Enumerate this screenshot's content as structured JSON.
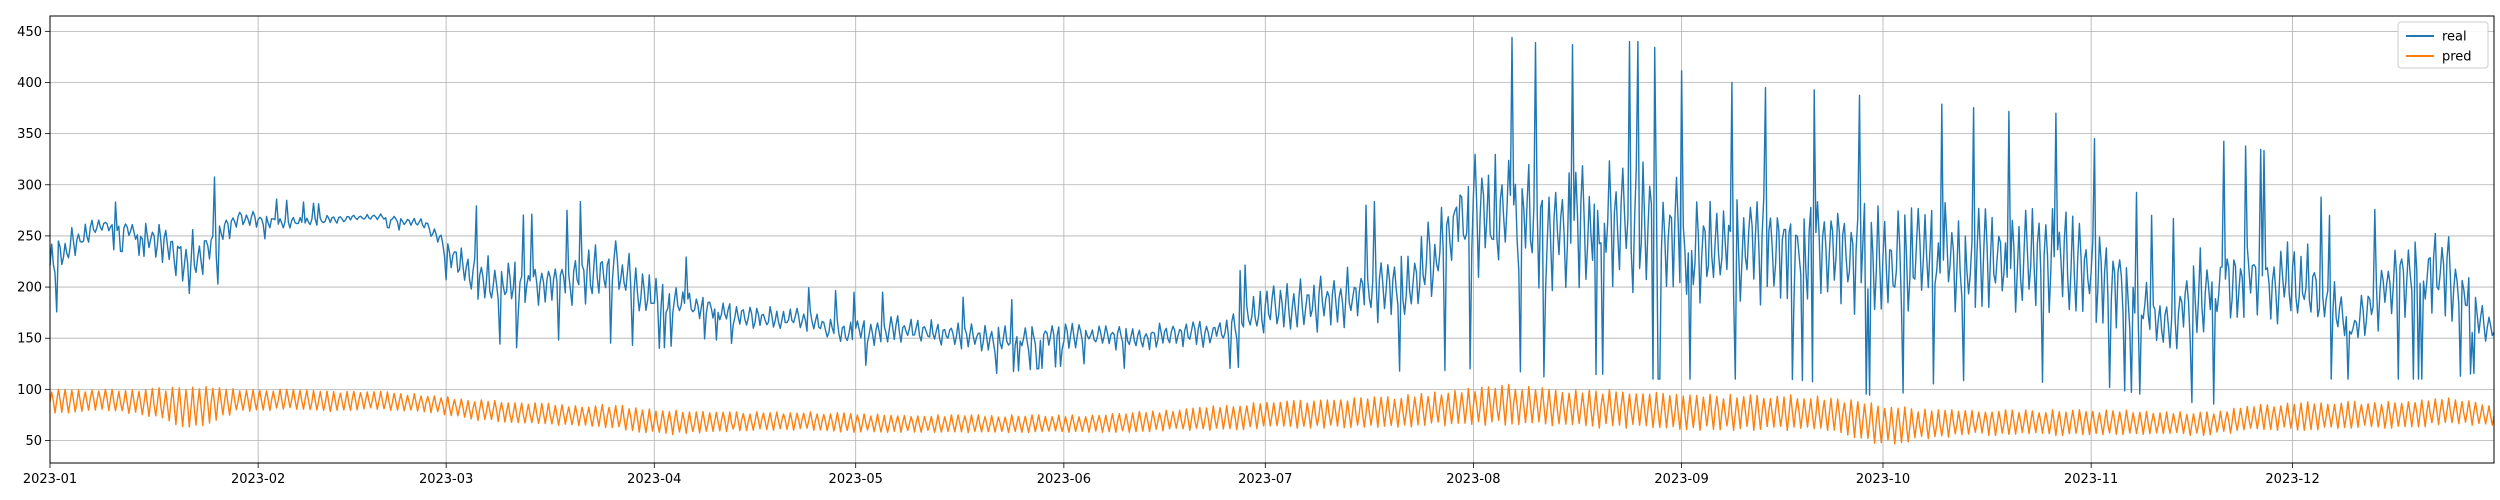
{
  "chart_data": {
    "type": "line",
    "title": "",
    "xlabel": "",
    "ylabel": "",
    "x_range": [
      "2023-01-01",
      "2023-12-31"
    ],
    "ylim": [
      28,
      465
    ],
    "grid": true,
    "legend_position": "top-right",
    "x_ticks": [
      "2023-01-01",
      "2023-02-01",
      "2023-03-01",
      "2023-04-01",
      "2023-05-01",
      "2023-06-01",
      "2023-07-01",
      "2023-08-01",
      "2023-09-01",
      "2023-10-01",
      "2023-11-01",
      "2023-12-01"
    ],
    "x_tick_labels": [
      "2023-01",
      "2023-02",
      "2023-03",
      "2023-04",
      "2023-05",
      "2023-06",
      "2023-07",
      "2023-08",
      "2023-09",
      "2023-10",
      "2023-11",
      "2023-12"
    ],
    "y_ticks": [
      50,
      100,
      150,
      200,
      250,
      300,
      350,
      400,
      450
    ],
    "y_tick_labels": [
      "50",
      "100",
      "150",
      "200",
      "250",
      "300",
      "350",
      "400",
      "450"
    ],
    "series": [
      {
        "name": "real",
        "color": "#1f77b4",
        "x": [
          "2023-01-01",
          "2023-01-08",
          "2023-01-15",
          "2023-01-22",
          "2023-01-29",
          "2023-02-05",
          "2023-02-12",
          "2023-02-19",
          "2023-02-26",
          "2023-03-05",
          "2023-03-12",
          "2023-03-19",
          "2023-03-26",
          "2023-04-02",
          "2023-04-09",
          "2023-04-16",
          "2023-04-23",
          "2023-04-30",
          "2023-05-07",
          "2023-05-14",
          "2023-05-21",
          "2023-05-28",
          "2023-06-04",
          "2023-06-11",
          "2023-06-18",
          "2023-06-25",
          "2023-07-02",
          "2023-07-09",
          "2023-07-16",
          "2023-07-23",
          "2023-07-30",
          "2023-08-06",
          "2023-08-13",
          "2023-08-20",
          "2023-08-27",
          "2023-09-03",
          "2023-09-10",
          "2023-09-17",
          "2023-09-24",
          "2023-10-01",
          "2023-10-08",
          "2023-10-15",
          "2023-10-22",
          "2023-10-29",
          "2023-11-05",
          "2023-11-12",
          "2023-11-19",
          "2023-11-26",
          "2023-12-03",
          "2023-12-10",
          "2023-12-17",
          "2023-12-24",
          "2023-12-31"
        ],
        "y_low": [
          165,
          240,
          230,
          140,
          250,
          245,
          255,
          260,
          250,
          150,
          140,
          150,
          145,
          140,
          150,
          140,
          145,
          120,
          130,
          125,
          115,
          120,
          125,
          120,
          125,
          120,
          125,
          120,
          125,
          115,
          120,
          120,
          110,
          115,
          110,
          110,
          110,
          110,
          105,
          90,
          105,
          110,
          105,
          110,
          100,
          90,
          85,
          105,
          110,
          110,
          110,
          110,
          120
        ],
        "y_high": [
          295,
          285,
          280,
          325,
          290,
          285,
          280,
          280,
          275,
          280,
          270,
          275,
          305,
          240,
          220,
          205,
          200,
          195,
          195,
          190,
          190,
          185,
          190,
          185,
          190,
          200,
          250,
          260,
          280,
          300,
          445,
          445,
          435,
          440,
          440,
          400,
          400,
          390,
          395,
          380,
          380,
          375,
          370,
          370,
          320,
          250,
          345,
          335,
          320,
          220,
          340,
          340,
          200
        ]
      },
      {
        "name": "pred",
        "color": "#ff7f0e",
        "x": [
          "2023-01-01",
          "2023-01-08",
          "2023-01-15",
          "2023-01-22",
          "2023-01-29",
          "2023-02-05",
          "2023-02-12",
          "2023-02-19",
          "2023-02-26",
          "2023-03-05",
          "2023-03-12",
          "2023-03-19",
          "2023-03-26",
          "2023-04-02",
          "2023-04-09",
          "2023-04-16",
          "2023-04-23",
          "2023-04-30",
          "2023-05-07",
          "2023-05-14",
          "2023-05-21",
          "2023-05-28",
          "2023-06-04",
          "2023-06-11",
          "2023-06-18",
          "2023-06-25",
          "2023-07-02",
          "2023-07-09",
          "2023-07-16",
          "2023-07-23",
          "2023-07-30",
          "2023-08-06",
          "2023-08-13",
          "2023-08-20",
          "2023-08-27",
          "2023-09-03",
          "2023-09-10",
          "2023-09-17",
          "2023-09-24",
          "2023-10-01",
          "2023-10-08",
          "2023-10-15",
          "2023-10-22",
          "2023-10-29",
          "2023-11-05",
          "2023-11-12",
          "2023-11-19",
          "2023-11-26",
          "2023-12-03",
          "2023-12-10",
          "2023-12-17",
          "2023-12-24",
          "2023-12-31"
        ],
        "y_low": [
          75,
          80,
          75,
          60,
          78,
          80,
          78,
          80,
          78,
          70,
          65,
          65,
          62,
          55,
          58,
          60,
          60,
          58,
          58,
          58,
          57,
          58,
          58,
          58,
          60,
          60,
          62,
          62,
          63,
          63,
          65,
          65,
          63,
          62,
          62,
          60,
          60,
          60,
          58,
          45,
          52,
          55,
          55,
          55,
          55,
          55,
          55,
          60,
          60,
          62,
          62,
          65,
          65
        ],
        "y_high": [
          100,
          100,
          100,
          105,
          100,
          100,
          98,
          98,
          95,
          90,
          88,
          85,
          85,
          80,
          78,
          78,
          78,
          77,
          75,
          75,
          75,
          75,
          75,
          78,
          80,
          85,
          88,
          90,
          92,
          95,
          100,
          105,
          100,
          100,
          98,
          95,
          95,
          95,
          92,
          85,
          80,
          80,
          80,
          80,
          80,
          78,
          78,
          85,
          88,
          88,
          88,
          92,
          85
        ]
      }
    ]
  }
}
